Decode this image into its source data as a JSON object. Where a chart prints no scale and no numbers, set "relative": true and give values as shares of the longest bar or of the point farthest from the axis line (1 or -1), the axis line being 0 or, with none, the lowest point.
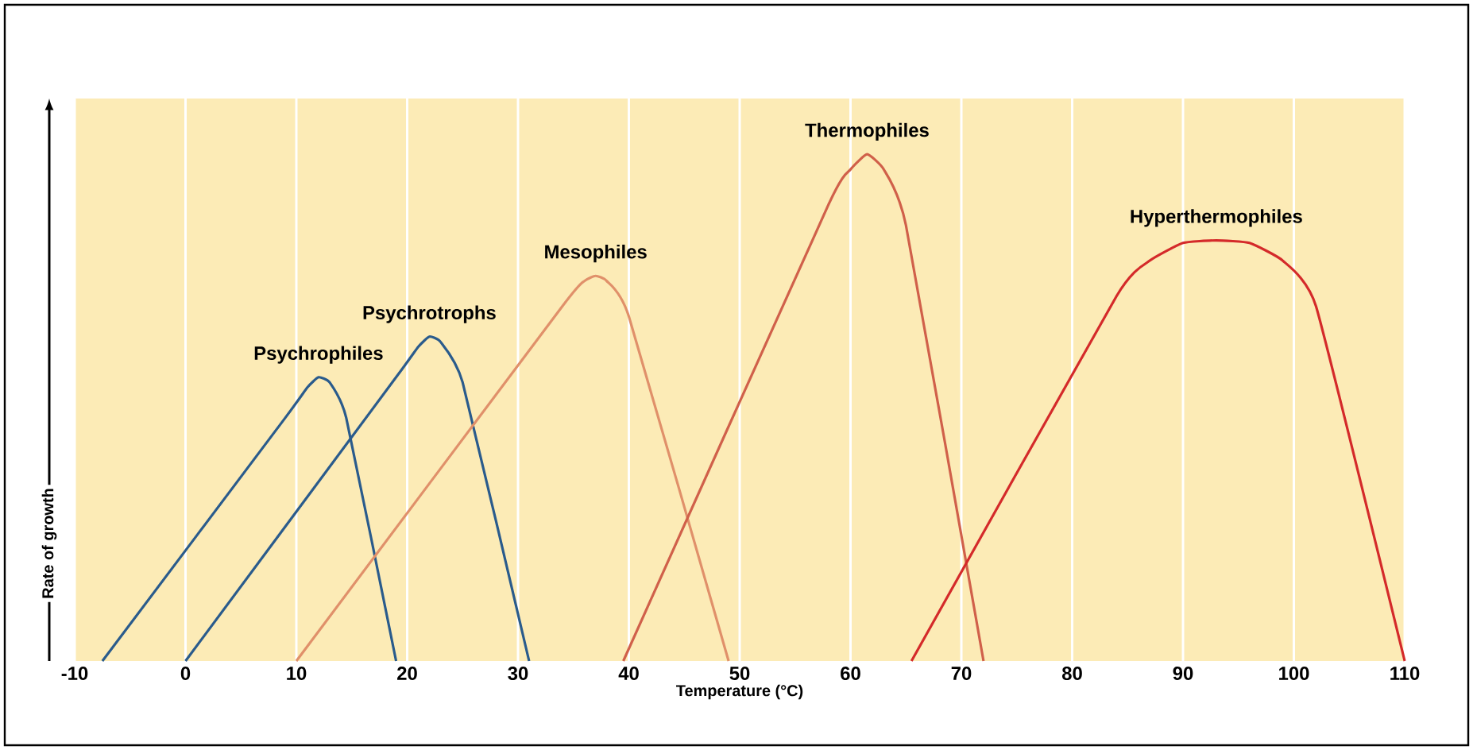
{
  "chart_data": {
    "type": "line",
    "xlabel": "Temperature (°C)",
    "ylabel": "Rate of growth",
    "relative": true,
    "xlim": [
      -10,
      110
    ],
    "xticks": [
      -10,
      0,
      10,
      20,
      30,
      40,
      50,
      60,
      70,
      80,
      90,
      100,
      110
    ],
    "grid": "x",
    "legend": false,
    "marker": "none",
    "line_style": "solid",
    "series": [
      {
        "name": "Psychrophiles",
        "color": "#2a5b8c",
        "x": [
          -7.5,
          9,
          11,
          12,
          13,
          14.5,
          19
        ],
        "values": [
          0,
          0.48,
          0.54,
          0.56,
          0.55,
          0.48,
          0
        ]
      },
      {
        "name": "Psychrotrophs",
        "color": "#2a5b8c",
        "x": [
          0,
          19,
          21,
          22,
          23,
          25,
          31
        ],
        "values": [
          0,
          0.56,
          0.62,
          0.64,
          0.63,
          0.55,
          0
        ]
      },
      {
        "name": "Mesophiles",
        "color": "#e0906a",
        "x": [
          10,
          34,
          36,
          37,
          38,
          40,
          49
        ],
        "values": [
          0,
          0.7,
          0.75,
          0.76,
          0.75,
          0.68,
          0
        ]
      },
      {
        "name": "Thermophiles",
        "color": "#d0604a",
        "x": [
          39.5,
          58,
          60,
          61.5,
          63,
          65,
          72
        ],
        "values": [
          0,
          0.9,
          0.97,
          1,
          0.97,
          0.86,
          0
        ]
      },
      {
        "name": "Hyperthermophiles",
        "color": "#d42a2a",
        "x": [
          65.5,
          84,
          87,
          90,
          93,
          96,
          99,
          102,
          110
        ],
        "values": [
          0,
          0.72,
          0.79,
          0.825,
          0.83,
          0.825,
          0.79,
          0.7,
          0
        ]
      }
    ]
  }
}
